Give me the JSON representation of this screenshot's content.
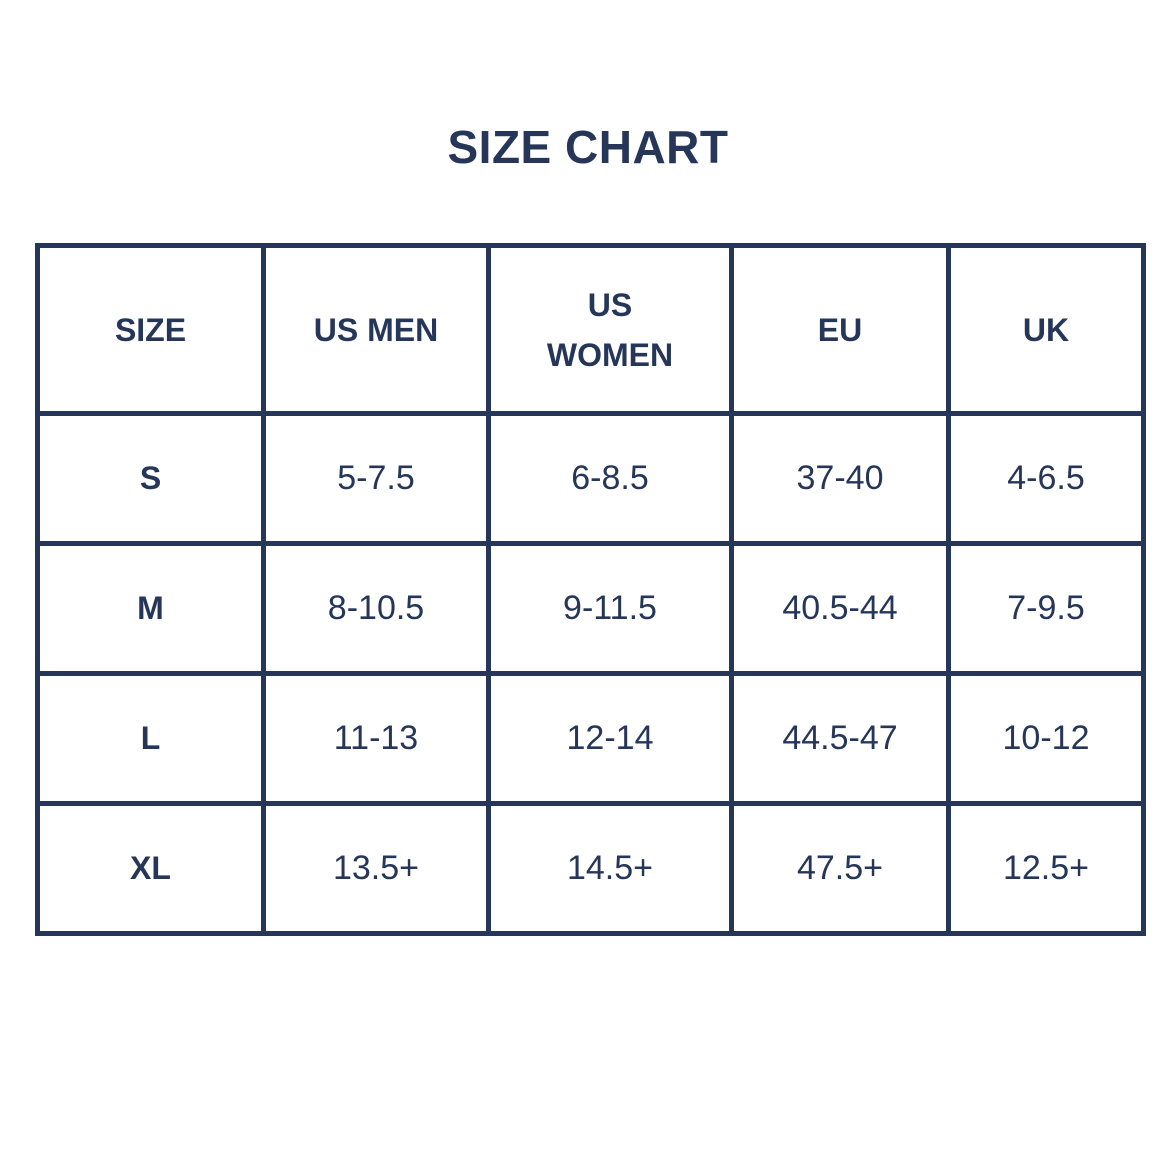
{
  "title": "SIZE CHART",
  "table": {
    "headers": [
      "SIZE",
      "US MEN",
      "US WOMEN",
      "EU",
      "UK"
    ],
    "rows": [
      [
        "S",
        "5-7.5",
        "6-8.5",
        "37-40",
        "4-6.5"
      ],
      [
        "M",
        "8-10.5",
        "9-11.5",
        "40.5-44",
        "7-9.5"
      ],
      [
        "L",
        "11-13",
        "12-14",
        "44.5-47",
        "10-12"
      ],
      [
        "XL",
        "13.5+",
        "14.5+",
        "47.5+",
        "12.5+"
      ]
    ]
  }
}
